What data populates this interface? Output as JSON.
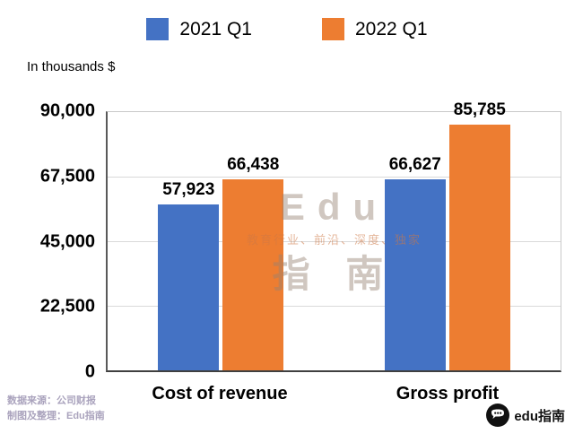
{
  "legend": [
    {
      "label": "2021 Q1",
      "color": "#4472C4"
    },
    {
      "label": "2022 Q1",
      "color": "#ED7D31"
    }
  ],
  "units_label": "In thousands $",
  "chart_data": {
    "type": "bar",
    "categories": [
      "Cost of revenue",
      "Gross profit"
    ],
    "series": [
      {
        "name": "2021 Q1",
        "color": "#4472C4",
        "values": [
          57923,
          66627
        ]
      },
      {
        "name": "2022 Q1",
        "color": "#ED7D31",
        "values": [
          66438,
          85785
        ]
      }
    ],
    "value_labels": [
      [
        "57,923",
        "66,627"
      ],
      [
        "66,438",
        "85,785"
      ]
    ],
    "title": "",
    "xlabel": "",
    "ylabel": "In thousands $",
    "ylim": [
      0,
      90000
    ],
    "yticks": [
      "0",
      "22,500",
      "45,000",
      "67,500",
      "90,000"
    ],
    "grid": true,
    "legend_position": "top"
  },
  "watermark": {
    "line1": "Edu",
    "line2": "教育行业、前沿、深度、独家",
    "line3": "指 南"
  },
  "footer": {
    "source": "数据来源：公司财报",
    "credit": "制图及整理：Edu指南",
    "logo_text": "edu指南"
  }
}
